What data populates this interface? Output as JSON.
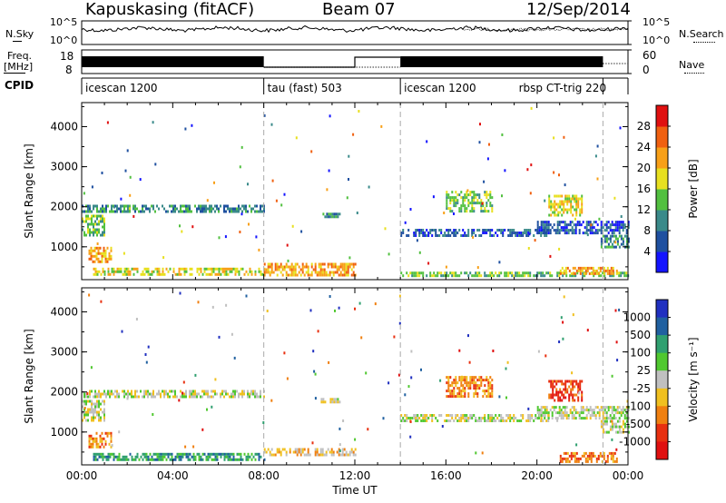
{
  "header": {
    "station": "Kapuskasing (fitACF)",
    "beam": "Beam 07",
    "date": "12/Sep/2014"
  },
  "strips": {
    "nsky_label": "N.Sky",
    "nsky_ticks": [
      "10^5",
      "10^0"
    ],
    "nsearch_label": "N.Search",
    "nsearch_ticks": [
      "10^5",
      "10^0"
    ],
    "freq_label": "Freq.",
    "freq_unit": "[MHz]",
    "freq_ticks": [
      "18",
      "8"
    ],
    "nave_label": "Nave",
    "nave_ticks": [
      "60",
      "0"
    ],
    "cpid_label": "CPID",
    "cpid_segments": [
      {
        "start": 0.0,
        "end": 8.0,
        "name": "icescan 1200"
      },
      {
        "start": 8.0,
        "end": 14.0,
        "name": "tau (fast) 503"
      },
      {
        "start": 14.0,
        "end": 22.9,
        "name": "icescan 1200"
      },
      {
        "start": 22.9,
        "end": 24.0,
        "name": "rbsp CT-trig 220"
      }
    ]
  },
  "chart_data": [
    {
      "type": "heatmap",
      "panel": "power",
      "ylabel": "Slant Range [km]",
      "xlabel": "",
      "xlim": [
        0,
        24
      ],
      "ylim": [
        180,
        4600
      ],
      "y_ticks": [
        1000,
        2000,
        3000,
        4000
      ],
      "x_ticks": [
        "00:00",
        "04:00",
        "08:00",
        "12:00",
        "16:00",
        "20:00",
        "00:00"
      ],
      "colorbar_label": "Power [dB]",
      "colorbar_ticks": [
        "4",
        "8",
        "12",
        "16",
        "20",
        "24",
        "28"
      ],
      "colorbar_colors": [
        "#1414ff",
        "#1f50a0",
        "#3a8a8a",
        "#52c040",
        "#e8e020",
        "#f8a018",
        "#f06010",
        "#e01010"
      ],
      "echo_bands": [
        {
          "x": [
            0.0,
            8.0
          ],
          "y": [
            1900,
            2050
          ],
          "level": 2
        },
        {
          "x": [
            0.0,
            1.0
          ],
          "y": [
            1300,
            1800
          ],
          "level": 3
        },
        {
          "x": [
            0.3,
            1.3
          ],
          "y": [
            600,
            1000
          ],
          "level": 5
        },
        {
          "x": [
            0.5,
            8.0
          ],
          "y": [
            300,
            480
          ],
          "level": 4
        },
        {
          "x": [
            8.0,
            12.0
          ],
          "y": [
            300,
            600
          ],
          "level": 5
        },
        {
          "x": [
            10.5,
            11.3
          ],
          "y": [
            1750,
            1850
          ],
          "level": 2
        },
        {
          "x": [
            14.0,
            20.5
          ],
          "y": [
            1250,
            1450
          ],
          "level": 1
        },
        {
          "x": [
            16.0,
            18.0
          ],
          "y": [
            1900,
            2400
          ],
          "level": 3
        },
        {
          "x": [
            20.0,
            24.0
          ],
          "y": [
            1350,
            1650
          ],
          "level": 1
        },
        {
          "x": [
            20.5,
            22.0
          ],
          "y": [
            1800,
            2300
          ],
          "level": 4
        },
        {
          "x": [
            22.8,
            24.0
          ],
          "y": [
            1000,
            1300
          ],
          "level": 2
        },
        {
          "x": [
            14.0,
            24.0
          ],
          "y": [
            280,
            380
          ],
          "level": 3
        },
        {
          "x": [
            21.0,
            23.5
          ],
          "y": [
            300,
            500
          ],
          "level": 5
        }
      ]
    },
    {
      "type": "heatmap",
      "panel": "velocity",
      "ylabel": "Slant Range [km]",
      "xlabel": "Time UT",
      "xlim": [
        0,
        24
      ],
      "ylim": [
        180,
        4600
      ],
      "y_ticks": [
        1000,
        2000,
        3000,
        4000
      ],
      "x_ticks": [
        "00:00",
        "04:00",
        "08:00",
        "12:00",
        "16:00",
        "20:00",
        "00:00"
      ],
      "colorbar_label": "Velocity [m s⁻¹]",
      "colorbar_ticks": [
        "1000",
        "500",
        "100",
        "25",
        "-25",
        "-100",
        "-500",
        "-1000"
      ],
      "colorbar_colors": [
        "#2030c0",
        "#2060a0",
        "#30a070",
        "#50c830",
        "#c0c0c0",
        "#f0c020",
        "#f08010",
        "#e83010",
        "#e01010"
      ],
      "echo_bands": [
        {
          "x": [
            0.0,
            8.0
          ],
          "y": [
            1850,
            2050
          ],
          "level": 4
        },
        {
          "x": [
            0.0,
            1.0
          ],
          "y": [
            1300,
            1800
          ],
          "level": 4
        },
        {
          "x": [
            0.3,
            1.3
          ],
          "y": [
            600,
            1000
          ],
          "level": 6
        },
        {
          "x": [
            0.5,
            8.0
          ],
          "y": [
            300,
            480
          ],
          "level": 2
        },
        {
          "x": [
            8.0,
            12.0
          ],
          "y": [
            400,
            600
          ],
          "level": 5
        },
        {
          "x": [
            10.5,
            11.3
          ],
          "y": [
            1750,
            1850
          ],
          "level": 4
        },
        {
          "x": [
            14.0,
            20.5
          ],
          "y": [
            1250,
            1450
          ],
          "level": 4
        },
        {
          "x": [
            16.0,
            18.0
          ],
          "y": [
            1900,
            2400
          ],
          "level": 6
        },
        {
          "x": [
            20.0,
            24.0
          ],
          "y": [
            1350,
            1650
          ],
          "level": 4
        },
        {
          "x": [
            20.5,
            22.0
          ],
          "y": [
            1800,
            2300
          ],
          "level": 7
        },
        {
          "x": [
            22.8,
            24.0
          ],
          "y": [
            1000,
            1300
          ],
          "level": 4
        },
        {
          "x": [
            21.0,
            23.5
          ],
          "y": [
            280,
            500
          ],
          "level": 6
        }
      ]
    }
  ]
}
